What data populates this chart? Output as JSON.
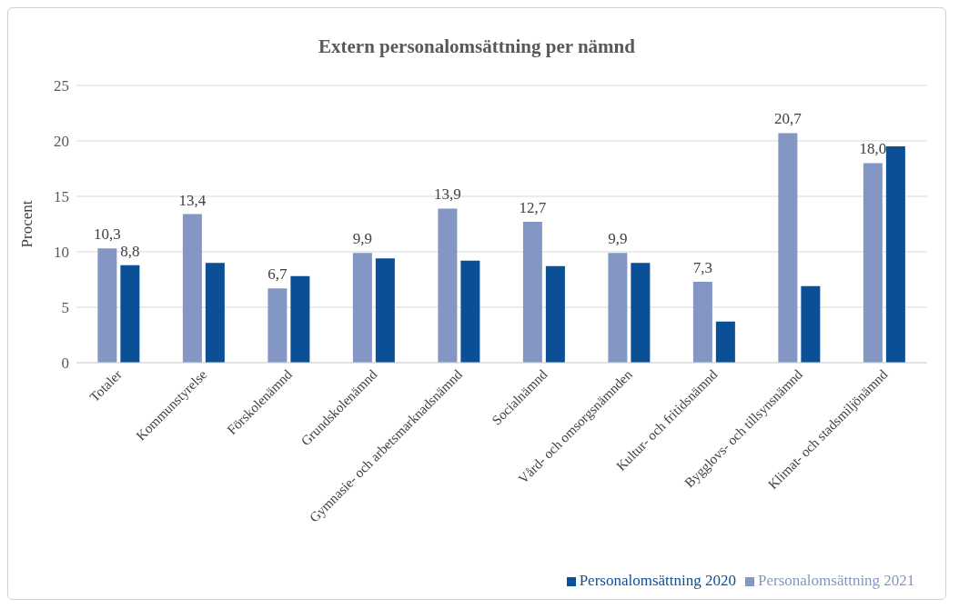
{
  "chart_data": {
    "type": "bar",
    "title": "Extern personalomsättning per nämnd",
    "ylabel": "Procent",
    "categories": [
      "Totaler",
      "Kommunstyrelse",
      "Förskolenämnd",
      "Grundskolenämnd",
      "Gymnasie- och arbetsmarknadsnämnd",
      "Socialnämnd",
      "Vård- och omsorgsnämnden",
      "Kultur- och fritidsnämnd",
      "Bygglovs- och tillsynsnämnd",
      "Klimat- och stadsmiljönämnd"
    ],
    "series": [
      {
        "name": "Personalomsättning 2021",
        "color": "#8497c4",
        "values": [
          10.3,
          13.4,
          6.7,
          9.9,
          13.9,
          12.7,
          9.9,
          7.3,
          20.7,
          18.0
        ],
        "value_labels": [
          "10,3",
          "13,4",
          "6,7",
          "9,9",
          "13,9",
          "12,7",
          "9,9",
          "7,3",
          "20,7",
          "18,0"
        ]
      },
      {
        "name": "Personalomsättning 2020",
        "color": "#0b4f96",
        "values": [
          8.8,
          9.0,
          7.8,
          9.4,
          9.2,
          8.7,
          9.0,
          3.7,
          6.9,
          19.5
        ],
        "value_labels": [
          "8,8",
          null,
          null,
          null,
          null,
          null,
          null,
          null,
          null,
          null
        ]
      }
    ],
    "ylim": [
      0,
      25
    ],
    "yticks": [
      0,
      5,
      10,
      15,
      20,
      25
    ],
    "grid": "y",
    "legend": "bottom"
  }
}
